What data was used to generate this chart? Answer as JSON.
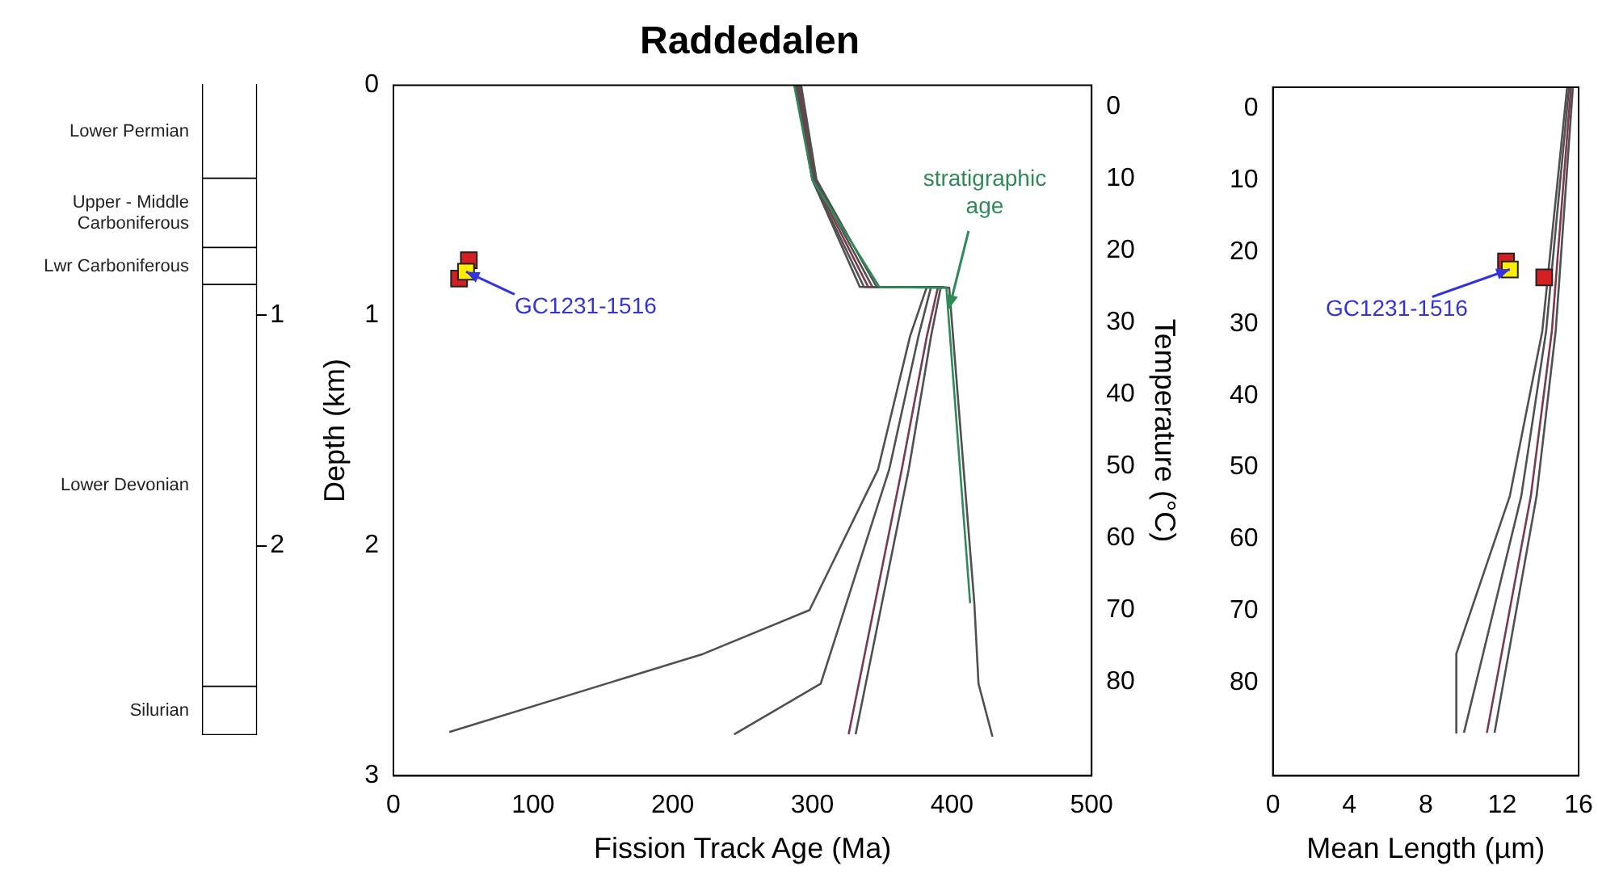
{
  "chart_data": [
    {
      "type": "bar",
      "stacked": true,
      "categories": [
        null
      ],
      "ylim": [
        2.82,
        0
      ],
      "yticks": [
        1,
        2
      ],
      "legend": false,
      "grid": false,
      "series": [
        {
          "name": "Lower Permian",
          "color": "#ffffff",
          "values": [
            0.41
          ]
        },
        {
          "name": "Upper - Middle Carboniferous",
          "color": "#ffffff",
          "values": [
            0.3
          ]
        },
        {
          "name": "Lwr Carboniferous",
          "color": "#ffffff",
          "values": [
            0.16
          ]
        },
        {
          "name": "Lower Devonian",
          "color": "#ffffff",
          "values": [
            1.74
          ]
        },
        {
          "name": "Silurian",
          "color": "#ffffff",
          "values": [
            0.21
          ]
        }
      ]
    },
    {
      "type": "line",
      "title": "Raddedalen",
      "xlabel": "Fission Track Age (Ma)",
      "ylabel": "Depth (km)",
      "y2label": "Temperature (°C)",
      "xlim": [
        0,
        500
      ],
      "xticks": [
        0,
        100,
        200,
        300,
        400,
        500
      ],
      "ylim": [
        3,
        0
      ],
      "yticks": [
        0,
        1,
        2,
        3
      ],
      "y2lim": [
        93,
        -3
      ],
      "y2ticks": [
        0,
        10,
        20,
        30,
        40,
        50,
        60,
        70,
        80
      ],
      "legend": false,
      "grid": false,
      "marker": "none",
      "annotations": [
        {
          "text": "GC1231-1516",
          "x": 52,
          "y": 0.81
        },
        {
          "text": "stratigraphic age",
          "x": 398,
          "y": 0.97
        }
      ],
      "series": [
        {
          "color": "#505050",
          "x": [
            288,
            300,
            334,
            382,
            370,
            347,
            298,
            222,
            40
          ],
          "values": [
            0,
            0.41,
            0.876,
            0.876,
            1.09,
            1.67,
            2.28,
            2.47,
            2.81
          ]
        },
        {
          "color": "#505050",
          "x": [
            289,
            300,
            337,
            385,
            376,
            355,
            306,
            244
          ],
          "values": [
            0,
            0.41,
            0.876,
            0.876,
            1.09,
            1.67,
            2.6,
            2.82
          ]
        },
        {
          "color": "#7a3a4a",
          "x": [
            290,
            301,
            340,
            390,
            382,
            364,
            326
          ],
          "values": [
            0,
            0.41,
            0.876,
            0.876,
            1.09,
            1.67,
            2.82
          ]
        },
        {
          "color": "#505050",
          "x": [
            291,
            302,
            343,
            392,
            385,
            369,
            331
          ],
          "values": [
            0,
            0.41,
            0.876,
            0.876,
            1.09,
            1.67,
            2.82
          ]
        },
        {
          "color": "#505050",
          "x": [
            292,
            303,
            346,
            393,
            398,
            416,
            419,
            429
          ],
          "values": [
            0,
            0.41,
            0.876,
            0.876,
            0.88,
            2.25,
            2.6,
            2.83
          ]
        },
        {
          "color": "#2e8b57",
          "x": [
            287,
            300,
            348,
            396,
            413
          ],
          "values": [
            0,
            0.41,
            0.876,
            0.88,
            2.25
          ]
        },
        {
          "type": "scatter",
          "marker": "square",
          "color": "#d42020",
          "x": [
            47,
            54
          ],
          "values": [
            0.84,
            0.76
          ]
        },
        {
          "type": "scatter",
          "marker": "square",
          "color": "#ffee00",
          "x": [
            52
          ],
          "values": [
            0.81
          ]
        }
      ]
    },
    {
      "type": "line",
      "xlabel": "Mean Length (µm)",
      "xlim": [
        0,
        16
      ],
      "xticks": [
        0,
        4,
        8,
        12,
        16
      ],
      "ylim": [
        93,
        -3
      ],
      "yticks": [
        0,
        10,
        20,
        30,
        40,
        50,
        60,
        70,
        80
      ],
      "legend": false,
      "grid": false,
      "marker": "none",
      "annotations": [
        {
          "text": "GC1231-1516",
          "x": 12.4,
          "y": 22.4
        }
      ],
      "series": [
        {
          "color": "#505050",
          "x": [
            15.4,
            14.1,
            12.4,
            9.6,
            9.6
          ],
          "values": [
            -3,
            31,
            54,
            76,
            87
          ]
        },
        {
          "color": "#505050",
          "x": [
            15.5,
            14.3,
            13.0,
            10.0
          ],
          "values": [
            -3,
            31,
            54,
            87
          ]
        },
        {
          "color": "#7a3a4a",
          "x": [
            15.6,
            14.6,
            13.5,
            11.2
          ],
          "values": [
            -3,
            31,
            54,
            87
          ]
        },
        {
          "color": "#505050",
          "x": [
            15.7,
            14.8,
            13.8,
            11.6
          ],
          "values": [
            -3,
            31,
            54,
            87
          ]
        },
        {
          "type": "scatter",
          "marker": "square",
          "color": "#d42020",
          "x": [
            12.2,
            14.2
          ],
          "values": [
            21.3,
            23.5
          ]
        },
        {
          "type": "scatter",
          "marker": "square",
          "color": "#ffee00",
          "x": [
            12.4
          ],
          "values": [
            22.4
          ]
        }
      ]
    }
  ]
}
